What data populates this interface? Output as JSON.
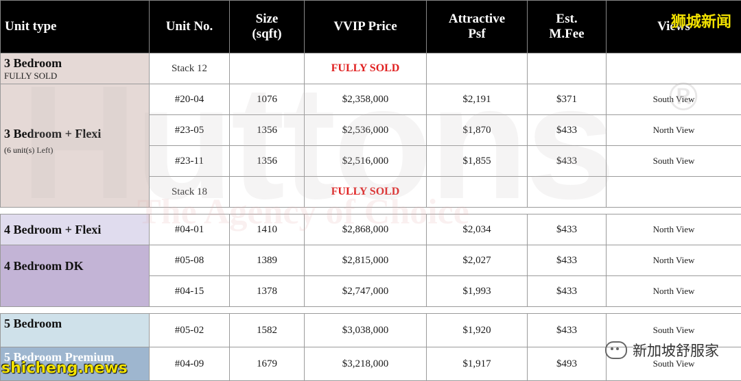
{
  "headers": [
    "Unit type",
    "Unit No.",
    "Size (sqft)",
    "VVIP Price",
    "Attractive Psf",
    "Est. M.Fee",
    "Views"
  ],
  "headers_lines": {
    "size": [
      "Size",
      "(sqft)"
    ],
    "psf": [
      "Attractive",
      "Psf"
    ],
    "fee": [
      "Est.",
      "M.Fee"
    ]
  },
  "groups": {
    "g1": {
      "type": "3 Bedroom",
      "sub": "FULLY SOLD",
      "color": "#e5d9d6"
    },
    "g2": {
      "type": "3 Bedroom + Flexi",
      "sub": "(6 unit(s) Left)",
      "color": "#e5d9d6"
    },
    "g3": {
      "type": "4 Bedroom + Flexi",
      "color": "#e0dcee"
    },
    "g4": {
      "type": "4 Bedroom DK",
      "color": "#c3b4d6"
    },
    "g5": {
      "type": "5 Bedroom",
      "color": "#cfe1ea"
    },
    "g6": {
      "type": "5 Bedroom Premium",
      "color": "#9eb6cf"
    }
  },
  "rows": {
    "r1": {
      "unit": "Stack 12",
      "price": "FULLY SOLD"
    },
    "r2": {
      "unit": "#20-04",
      "size": "1076",
      "price": "$2,358,000",
      "psf": "$2,191",
      "fee": "$371",
      "view": "South View"
    },
    "r3": {
      "unit": "#23-05",
      "size": "1356",
      "price": "$2,536,000",
      "psf": "$1,870",
      "fee": "$433",
      "view": "North View"
    },
    "r4": {
      "unit": "#23-11",
      "size": "1356",
      "price": "$2,516,000",
      "psf": "$1,855",
      "fee": "$433",
      "view": "South View"
    },
    "r5": {
      "unit": "Stack 18",
      "price": "FULLY SOLD"
    },
    "r6": {
      "unit": "#04-01",
      "size": "1410",
      "price": "$2,868,000",
      "psf": "$2,034",
      "fee": "$433",
      "view": "North View"
    },
    "r7": {
      "unit": "#05-08",
      "size": "1389",
      "price": "$2,815,000",
      "psf": "$2,027",
      "fee": "$433",
      "view": "North View"
    },
    "r8": {
      "unit": "#04-15",
      "size": "1378",
      "price": "$2,747,000",
      "psf": "$1,993",
      "fee": "$433",
      "view": "North View"
    },
    "r9": {
      "unit": "#05-02",
      "size": "1582",
      "price": "$3,038,000",
      "psf": "$1,920",
      "fee": "$433",
      "view": "South View"
    },
    "r10": {
      "unit": "#04-09",
      "size": "1679",
      "price": "$3,218,000",
      "psf": "$1,917",
      "fee": "$493",
      "view": "South View"
    }
  },
  "watermark": {
    "brand": "Huttons",
    "registered": "®",
    "tagline": "The Agency of Choice"
  },
  "overlays": {
    "top_brand": "狮城新闻",
    "bottom_brand": "shicheng.news",
    "wechat_label": "新加坡舒服家"
  }
}
